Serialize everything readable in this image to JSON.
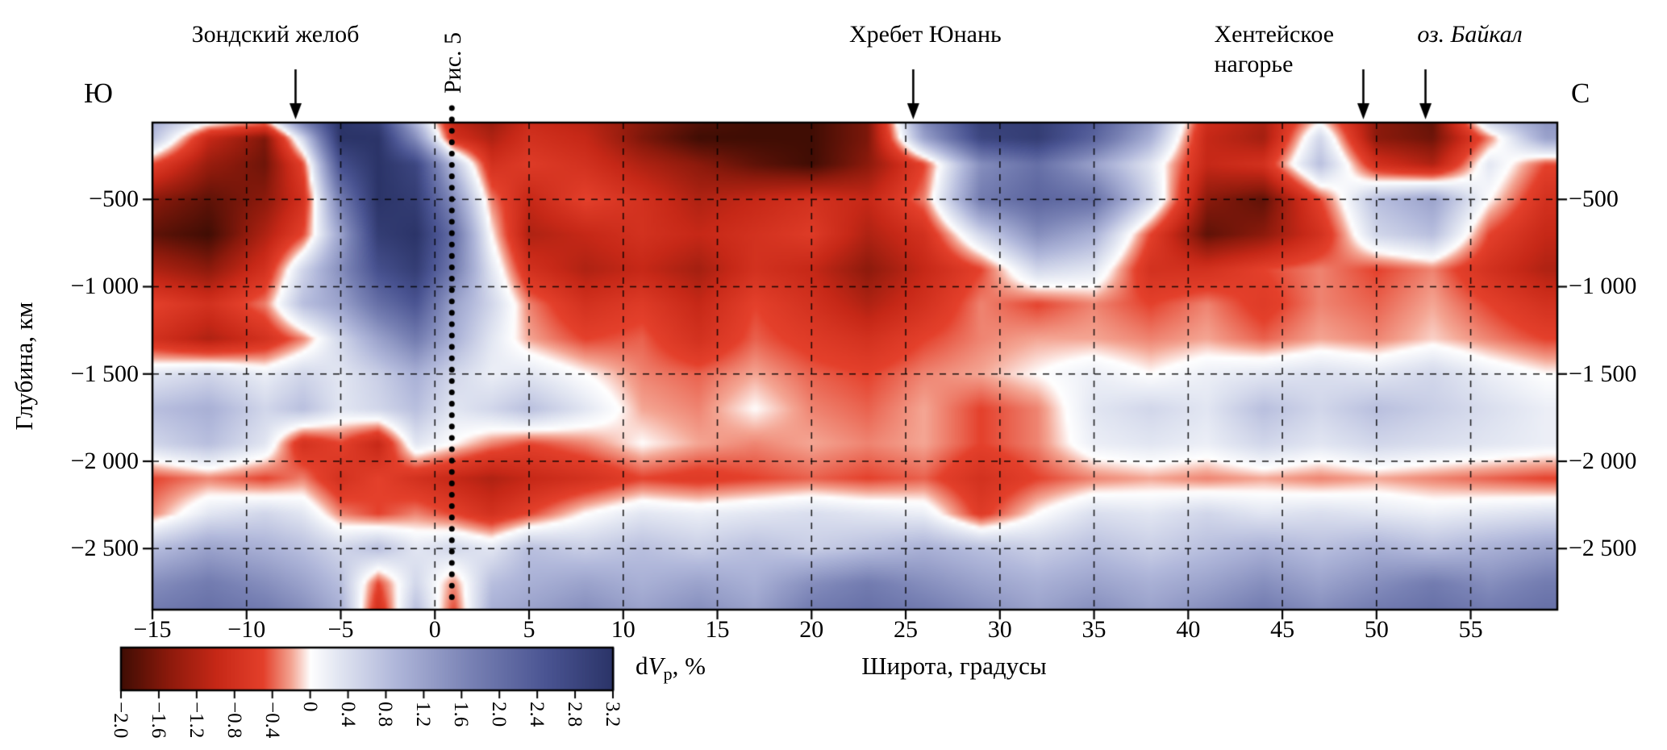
{
  "figure": {
    "compass_left": "Ю",
    "compass_right": "С"
  },
  "chart_data": {
    "type": "heatmap",
    "title": "",
    "xlabel": "Широта, градусы",
    "ylabel": "Глубина, км",
    "x_range": [
      -15,
      59.6
    ],
    "depth_range_km": [
      -2850,
      -60
    ],
    "grid_dashed": true,
    "x_tick_values": [
      -15,
      -10,
      -5,
      0,
      5,
      10,
      15,
      20,
      25,
      30,
      35,
      40,
      45,
      50,
      55
    ],
    "x_tick_labels": [
      "−15",
      "−10",
      "−5",
      "0",
      "5",
      "10",
      "15",
      "20",
      "25",
      "30",
      "35",
      "40",
      "45",
      "50",
      "55"
    ],
    "y_tick_values": [
      -500,
      -1000,
      -1500,
      -2000,
      -2500
    ],
    "y_tick_labels": [
      "−500",
      "−1 000",
      "−1 500",
      "−2 000",
      "−2 500"
    ],
    "fig5_line": {
      "label": "Рис. 5",
      "lat": 0.9,
      "style": "dotted"
    },
    "annotations": [
      {
        "lines": [
          "Зондский желоб"
        ],
        "lat": -7.4,
        "dx": -25,
        "arrow": true,
        "italic": false,
        "align": "center"
      },
      {
        "lines": [
          "Хребет Юнань"
        ],
        "lat": 25.4,
        "dx": 15,
        "arrow": true,
        "italic": false,
        "align": "center"
      },
      {
        "lines": [
          "Хентейское",
          "нагорье"
        ],
        "lat": 49.3,
        "dx": -185,
        "arrow": true,
        "italic": false,
        "align": "left"
      },
      {
        "lines": [
          "оз. Байкал"
        ],
        "lat": 52.6,
        "dx": 55,
        "arrow": true,
        "italic": true,
        "align": "center"
      }
    ],
    "colorbar": {
      "label_parts": [
        "d",
        "V",
        "p",
        ", %"
      ],
      "min": -2.0,
      "max": 3.2,
      "tick_values": [
        -2.0,
        -1.6,
        -1.2,
        -0.8,
        -0.4,
        0,
        0.4,
        0.8,
        1.2,
        1.6,
        2.0,
        2.4,
        2.8,
        3.2
      ],
      "tick_labels": [
        "−2.0",
        "−1.6",
        "−1.2",
        "−0.8",
        "−0.4",
        "0",
        "0.4",
        "0.8",
        "1.2",
        "1.6",
        "2.0",
        "2.4",
        "2.8",
        "3.2"
      ]
    },
    "colormap_stops": [
      [
        -2.0,
        "#400d04"
      ],
      [
        -1.5,
        "#8c1a0c"
      ],
      [
        -1.0,
        "#c62817"
      ],
      [
        -0.5,
        "#e4402b"
      ],
      [
        -0.2,
        "#f4a694"
      ],
      [
        0.0,
        "#ffffff"
      ],
      [
        0.3,
        "#e2e6f2"
      ],
      [
        0.9,
        "#b0b7da"
      ],
      [
        1.7,
        "#7881b4"
      ],
      [
        2.5,
        "#4a5492"
      ],
      [
        3.2,
        "#2b3468"
      ]
    ],
    "heatmap_grid": {
      "lats": [
        -15,
        -12,
        -9,
        -7,
        -5,
        -3,
        -1,
        1,
        3,
        5,
        8,
        11,
        14,
        17,
        20,
        23,
        26,
        29,
        32,
        35,
        38,
        41,
        44,
        47,
        50,
        53,
        56,
        59
      ],
      "depths_km": [
        0,
        -150,
        -300,
        -500,
        -700,
        -900,
        -1100,
        -1300,
        -1500,
        -1700,
        -1900,
        -2100,
        -2300,
        -2500,
        -2700,
        -2850
      ],
      "dvp_percent": [
        [
          1.2,
          0.8,
          0.5,
          2.5,
          3.2,
          2.8,
          0.5,
          -1.2,
          -1.5,
          -1.0,
          -1.2,
          -1.5,
          -1.8,
          -2.0,
          -2.0,
          -1.6,
          1.8,
          3.0,
          3.0,
          2.5,
          1.5,
          -0.8,
          -1.2,
          -0.3,
          -1.5,
          -1.8,
          1.0,
          1.5
        ],
        [
          0.8,
          -1.0,
          -1.6,
          0.5,
          3.2,
          3.2,
          1.5,
          -0.8,
          -1.2,
          -0.8,
          -1.0,
          -1.6,
          -2.0,
          -2.0,
          -2.0,
          -1.6,
          1.2,
          2.8,
          3.0,
          2.2,
          1.0,
          -1.0,
          -1.3,
          0.5,
          -1.5,
          -1.7,
          -0.3,
          1.2
        ],
        [
          -0.5,
          -1.4,
          -1.7,
          -0.5,
          2.6,
          3.2,
          2.8,
          0.8,
          -0.8,
          -0.6,
          -0.8,
          -1.2,
          -1.5,
          -1.8,
          -2.0,
          -1.5,
          -0.5,
          1.5,
          2.0,
          1.2,
          0.3,
          -1.0,
          -0.8,
          0.8,
          -0.8,
          -1.2,
          0.3,
          -0.5
        ],
        [
          -1.5,
          -1.8,
          -1.5,
          -0.8,
          1.8,
          3.2,
          3.0,
          1.5,
          -0.3,
          -1.0,
          -0.5,
          -0.8,
          -1.2,
          -1.0,
          -0.8,
          -1.0,
          -0.3,
          1.8,
          2.2,
          2.0,
          0.5,
          -1.5,
          -1.8,
          -0.5,
          0.8,
          1.2,
          0.0,
          -0.8
        ],
        [
          -1.8,
          -2.0,
          -1.2,
          -0.5,
          1.2,
          3.0,
          3.2,
          2.0,
          0.0,
          -1.2,
          -1.0,
          -0.8,
          -1.0,
          -0.8,
          -0.6,
          -1.2,
          -0.8,
          0.5,
          1.5,
          1.0,
          -0.5,
          -1.8,
          -1.5,
          -0.8,
          0.5,
          0.8,
          -0.5,
          -1.0
        ],
        [
          -1.2,
          -1.5,
          -0.8,
          0.5,
          1.5,
          2.6,
          3.0,
          1.8,
          0.3,
          -0.8,
          -1.2,
          -1.0,
          -1.3,
          -0.8,
          -1.0,
          -1.5,
          -1.0,
          -0.5,
          0.5,
          0.3,
          -0.8,
          -0.8,
          -0.5,
          -0.3,
          -0.5,
          -0.3,
          -0.8,
          -1.2
        ],
        [
          -0.5,
          -0.8,
          -0.3,
          0.8,
          1.2,
          2.0,
          2.5,
          1.2,
          0.5,
          -0.3,
          -0.8,
          -0.6,
          -1.0,
          -0.5,
          -0.8,
          -1.2,
          -0.8,
          -0.3,
          -0.5,
          -0.3,
          -0.5,
          -0.3,
          -0.6,
          -0.3,
          -0.4,
          -0.2,
          -0.5,
          -0.8
        ],
        [
          -0.8,
          -1.2,
          -0.8,
          -0.3,
          0.5,
          1.2,
          1.8,
          1.0,
          0.3,
          -0.2,
          -0.5,
          -0.4,
          -0.8,
          -0.4,
          -0.6,
          -0.8,
          -0.5,
          -0.3,
          -0.2,
          -0.2,
          -0.3,
          -0.2,
          -0.4,
          -0.2,
          -0.3,
          -0.1,
          -0.3,
          -0.5
        ],
        [
          0.3,
          0.5,
          0.2,
          0.5,
          0.3,
          0.6,
          1.0,
          0.5,
          0.2,
          0.3,
          0.0,
          -0.3,
          -0.4,
          -0.2,
          -0.4,
          -0.5,
          -0.3,
          -0.2,
          0.0,
          0.2,
          0.0,
          0.2,
          0.3,
          0.4,
          0.3,
          0.5,
          0.2,
          0.0
        ],
        [
          0.8,
          1.0,
          0.5,
          0.8,
          0.3,
          0.5,
          0.8,
          0.3,
          0.5,
          0.8,
          0.3,
          -0.2,
          -0.3,
          0.0,
          -0.3,
          -0.4,
          -0.2,
          -0.5,
          -0.3,
          0.3,
          0.5,
          0.3,
          0.8,
          0.5,
          0.8,
          0.6,
          0.4,
          0.2
        ],
        [
          0.5,
          0.8,
          0.3,
          -0.8,
          -0.5,
          -1.0,
          0.3,
          0.0,
          -0.3,
          -0.5,
          -0.3,
          0.0,
          -0.2,
          -0.3,
          -0.2,
          -0.3,
          -0.2,
          -0.5,
          -0.3,
          0.2,
          0.3,
          0.2,
          0.5,
          0.3,
          0.5,
          0.4,
          0.3,
          0.2
        ],
        [
          -0.5,
          -0.3,
          -0.5,
          -0.3,
          -0.8,
          -0.5,
          -0.8,
          -1.0,
          -1.2,
          -1.0,
          -0.8,
          -0.5,
          -0.6,
          -0.5,
          -0.4,
          -0.5,
          -0.4,
          -0.8,
          -0.5,
          -0.3,
          -0.2,
          -0.3,
          -0.2,
          -0.3,
          -0.2,
          -0.3,
          -0.4,
          -0.5
        ],
        [
          -0.3,
          0.3,
          0.5,
          0.3,
          -0.3,
          -0.5,
          -0.3,
          -0.5,
          -0.8,
          -0.5,
          0.0,
          0.3,
          0.2,
          0.3,
          0.4,
          0.3,
          0.2,
          -0.6,
          0.0,
          0.4,
          0.3,
          0.5,
          0.3,
          0.4,
          0.3,
          0.2,
          0.3,
          0.4
        ],
        [
          0.8,
          1.2,
          1.0,
          0.8,
          0.5,
          0.8,
          0.3,
          0.5,
          0.3,
          0.8,
          0.6,
          0.8,
          0.6,
          0.8,
          0.6,
          0.8,
          1.0,
          0.8,
          0.6,
          0.8,
          0.6,
          0.8,
          1.0,
          0.8,
          1.0,
          0.8,
          1.0,
          1.2
        ],
        [
          1.5,
          1.8,
          1.5,
          1.2,
          0.8,
          -0.5,
          0.5,
          -0.3,
          0.8,
          1.0,
          1.2,
          1.0,
          1.2,
          1.0,
          1.5,
          1.8,
          1.5,
          1.2,
          1.0,
          1.2,
          1.0,
          1.2,
          1.5,
          1.2,
          1.5,
          1.8,
          1.5,
          1.8
        ],
        [
          1.8,
          2.0,
          1.8,
          1.5,
          1.0,
          -0.8,
          0.8,
          -0.5,
          1.0,
          1.2,
          1.5,
          1.2,
          1.5,
          1.2,
          1.8,
          2.0,
          1.8,
          1.5,
          1.2,
          1.5,
          1.2,
          1.5,
          1.8,
          1.5,
          1.8,
          2.0,
          1.8,
          2.0
        ]
      ]
    }
  }
}
